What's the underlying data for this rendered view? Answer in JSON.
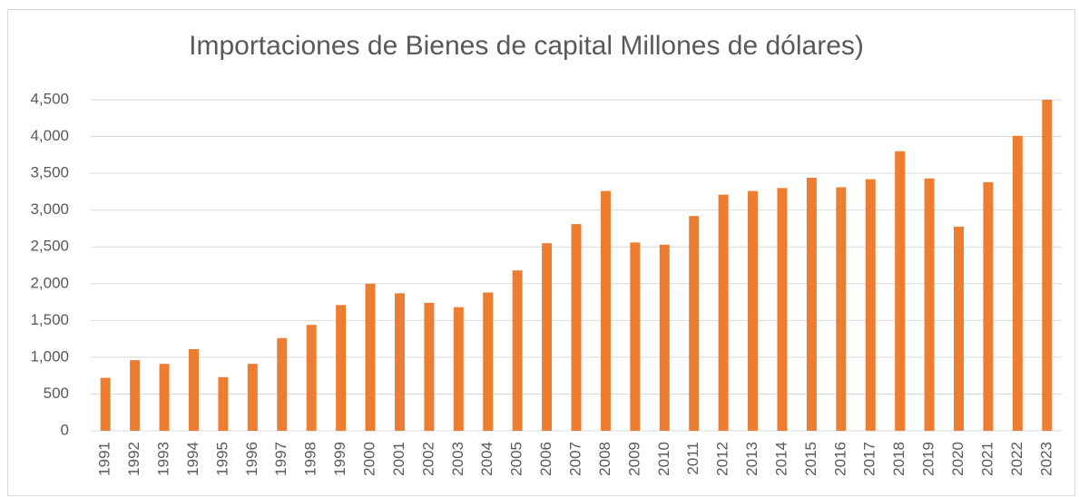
{
  "chart_data": {
    "type": "bar",
    "title": "Importaciones de Bienes de capital Millones de dólares)",
    "categories": [
      "1991",
      "1992",
      "1993",
      "1994",
      "1995",
      "1996",
      "1997",
      "1998",
      "1999",
      "2000",
      "2001",
      "2002",
      "2003",
      "2004",
      "2005",
      "2006",
      "2007",
      "2008",
      "2009",
      "2010",
      "2011",
      "2012",
      "2013",
      "2014",
      "2015",
      "2016",
      "2017",
      "2018",
      "2019",
      "2020",
      "2021",
      "2022",
      "2023"
    ],
    "values": [
      720,
      960,
      910,
      1110,
      730,
      910,
      1260,
      1440,
      1710,
      2000,
      1870,
      1740,
      1680,
      1880,
      2180,
      2550,
      2810,
      3260,
      2560,
      2530,
      2920,
      3210,
      3260,
      3300,
      3440,
      3310,
      3420,
      3800,
      3430,
      2775,
      3380,
      4010,
      4500
    ],
    "color": "#ed7d31",
    "ylim": [
      0,
      4500
    ],
    "yticks": [
      0,
      500,
      {
        "value": 1000,
        "label": "1,000"
      },
      {
        "value": 1500,
        "label": "1,500"
      },
      {
        "value": 2000,
        "label": "2,000"
      },
      {
        "value": 2500,
        "label": "2,500"
      },
      {
        "value": 3000,
        "label": "3,000"
      },
      {
        "value": 3500,
        "label": "3,500"
      },
      {
        "value": 4000,
        "label": "4,000"
      },
      {
        "value": 4500,
        "label": "4,500"
      }
    ],
    "grid": true
  }
}
